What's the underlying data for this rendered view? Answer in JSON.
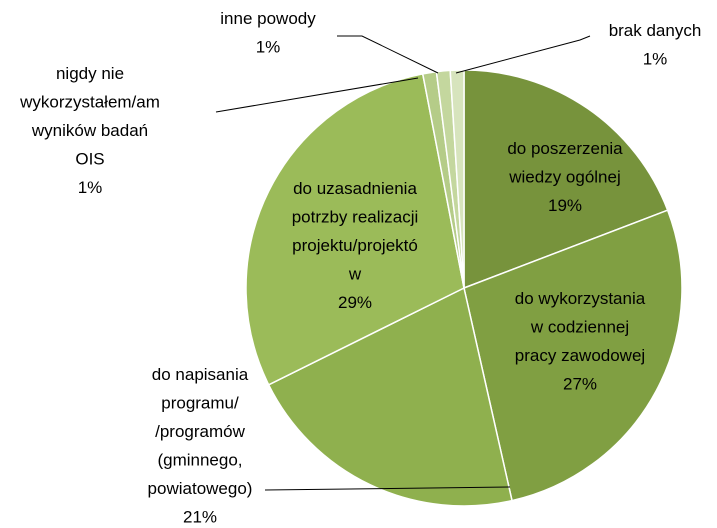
{
  "chart_data": {
    "type": "pie",
    "categories": [
      [
        "do poszerzenia",
        "wiedzy ogólnej"
      ],
      [
        "do wykorzystania",
        "w codziennej",
        "pracy zawodowej"
      ],
      [
        "do napisania",
        "programu/",
        "/programów",
        "(gminnego,",
        "powiatowego)"
      ],
      [
        "do uzasadnienia",
        "potrzby realizacji",
        "projektu/projektó",
        "w"
      ],
      [
        "nigdy nie",
        "wykorzystałem/am",
        "wyników badań",
        "OIS"
      ],
      [
        "inne powody"
      ],
      [
        "brak danych"
      ]
    ],
    "values": [
      19,
      27,
      21,
      29,
      1,
      1,
      1
    ],
    "value_labels": [
      "19%",
      "27%",
      "21%",
      "29%",
      "1%",
      "1%",
      "1%"
    ],
    "colors": [
      "#77933c",
      "#809f42",
      "#8fb04e",
      "#9bbb59",
      "#b5cc88",
      "#c4d79e",
      "#d7e4bd"
    ]
  }
}
